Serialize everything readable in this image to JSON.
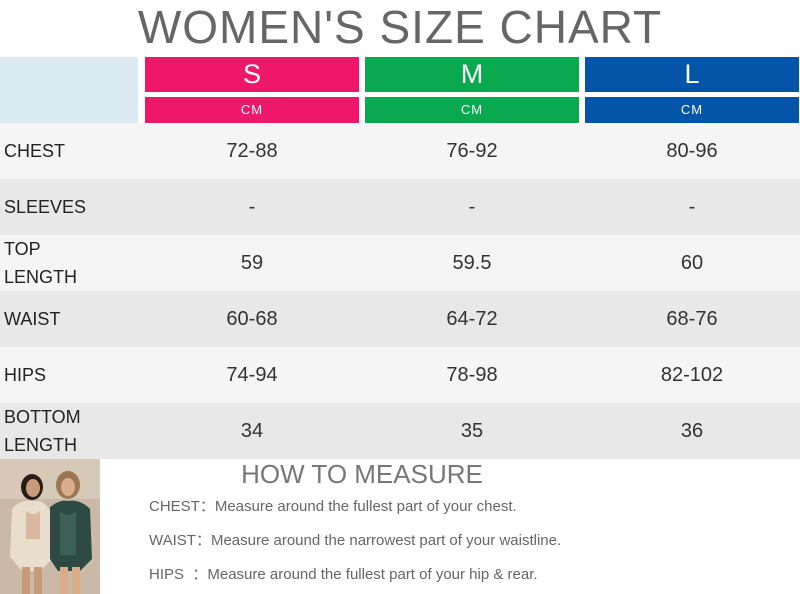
{
  "title": "WOMEN'S SIZE CHART",
  "sizes": [
    {
      "label": "S",
      "unit": "CM",
      "color": "#ee1769"
    },
    {
      "label": "M",
      "unit": "CM",
      "color": "#0aa84f"
    },
    {
      "label": "L",
      "unit": "CM",
      "color": "#0454a8"
    }
  ],
  "rows": [
    {
      "label": "CHEST",
      "values": [
        "72-88",
        "76-92",
        "80-96"
      ]
    },
    {
      "label": "SLEEVES",
      "values": [
        "-",
        "-",
        "-"
      ]
    },
    {
      "label": "TOP\nLENGTH",
      "values": [
        "59",
        "59.5",
        "60"
      ]
    },
    {
      "label": "WAIST",
      "values": [
        "60-68",
        "64-72",
        "68-76"
      ]
    },
    {
      "label": "HIPS",
      "values": [
        "74-94",
        "78-98",
        "82-102"
      ]
    },
    {
      "label": "BOTTOM\nLENGTH",
      "values": [
        "34",
        "35",
        "36"
      ]
    }
  ],
  "how_to": {
    "title": "HOW TO MEASURE",
    "items": [
      {
        "label": "CHEST：",
        "text": "Measure around the fullest part of your chest."
      },
      {
        "label": "WAIST：",
        "text": "Measure around the narrowest part of your waistline."
      },
      {
        "label": "HIPS  ：",
        "text": "Measure around the fullest part of your hip & rear."
      }
    ]
  }
}
